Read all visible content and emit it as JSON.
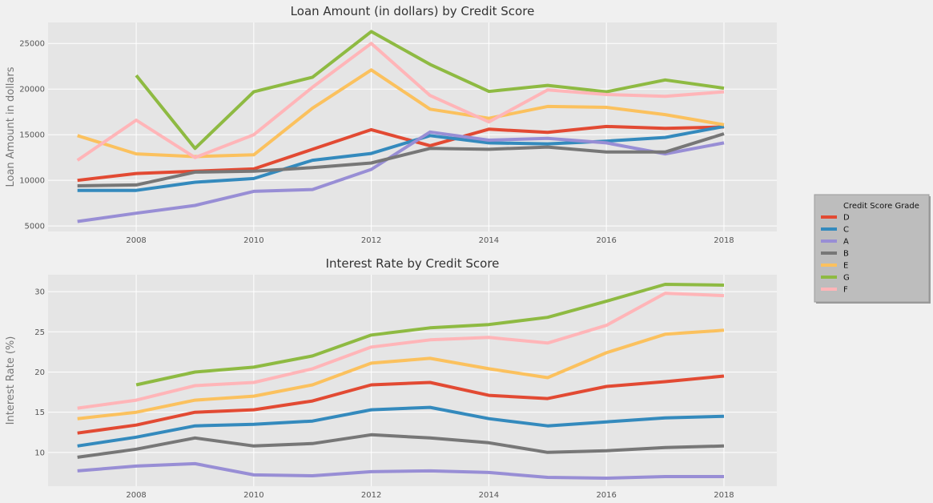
{
  "chart_data": [
    {
      "type": "line",
      "title": "Loan Amount (in dollars) by Credit Score",
      "xlabel": "",
      "ylabel": "Loan Amount in dollars",
      "xlim": [
        2006.5,
        2018.9
      ],
      "ylim": [
        4400,
        27300
      ],
      "xticks": [
        "2008",
        "2010",
        "2012",
        "2014",
        "2016",
        "2018"
      ],
      "yticks": [
        "5000",
        "10000",
        "15000",
        "20000",
        "25000"
      ],
      "grid": true,
      "series": [
        {
          "name": "D",
          "color": "#E24A33",
          "x": [
            2007,
            2008,
            2009,
            2010,
            2011,
            2012,
            2013,
            2014,
            2015,
            2016,
            2017,
            2018
          ],
          "values": [
            10000,
            10750,
            11000,
            11250,
            13400,
            15550,
            13800,
            15600,
            15250,
            15900,
            15700,
            15850
          ]
        },
        {
          "name": "C",
          "color": "#348ABD",
          "x": [
            2007,
            2008,
            2009,
            2010,
            2011,
            2012,
            2013,
            2014,
            2015,
            2016,
            2017,
            2018
          ],
          "values": [
            8900,
            8900,
            9800,
            10200,
            12200,
            12950,
            14900,
            14100,
            14000,
            14300,
            14700,
            15900
          ]
        },
        {
          "name": "A",
          "color": "#988ED5",
          "x": [
            2007,
            2008,
            2009,
            2010,
            2011,
            2012,
            2013,
            2014,
            2015,
            2016,
            2017,
            2018
          ],
          "values": [
            5500,
            6400,
            7250,
            8800,
            9000,
            11200,
            15300,
            14400,
            14600,
            14100,
            12900,
            14100
          ]
        },
        {
          "name": "B",
          "color": "#777777",
          "x": [
            2007,
            2008,
            2009,
            2010,
            2011,
            2012,
            2013,
            2014,
            2015,
            2016,
            2017,
            2018
          ],
          "values": [
            9400,
            9500,
            10900,
            11000,
            11400,
            11900,
            13500,
            13400,
            13650,
            13100,
            13100,
            15100
          ]
        },
        {
          "name": "E",
          "color": "#FBC15E",
          "x": [
            2007,
            2008,
            2009,
            2010,
            2011,
            2012,
            2013,
            2014,
            2015,
            2016,
            2017,
            2018
          ],
          "values": [
            14900,
            12900,
            12600,
            12800,
            17900,
            22100,
            17800,
            16800,
            18100,
            18000,
            17200,
            16100
          ]
        },
        {
          "name": "G",
          "color": "#8EBA42",
          "x": [
            2008,
            2009,
            2010,
            2011,
            2012,
            2013,
            2014,
            2015,
            2016,
            2017,
            2018
          ],
          "values": [
            21500,
            13500,
            19700,
            21300,
            26300,
            22700,
            19750,
            20400,
            19700,
            21000,
            20100
          ]
        },
        {
          "name": "F",
          "color": "#FFB5B8",
          "x": [
            2007,
            2008,
            2009,
            2010,
            2011,
            2012,
            2013,
            2014,
            2015,
            2016,
            2017,
            2018
          ],
          "values": [
            12200,
            16600,
            12500,
            15000,
            20200,
            25000,
            19300,
            16400,
            19900,
            19400,
            19200,
            19700
          ]
        }
      ]
    },
    {
      "type": "line",
      "title": "Interest Rate by Credit Score",
      "xlabel": "",
      "ylabel": "Interest Rate (%)",
      "xlim": [
        2006.5,
        2018.9
      ],
      "ylim": [
        5.8,
        32.1
      ],
      "xticks": [
        "2008",
        "2010",
        "2012",
        "2014",
        "2016",
        "2018"
      ],
      "yticks": [
        "10",
        "15",
        "20",
        "25",
        "30"
      ],
      "grid": true,
      "series": [
        {
          "name": "D",
          "color": "#E24A33",
          "x": [
            2007,
            2008,
            2009,
            2010,
            2011,
            2012,
            2013,
            2014,
            2015,
            2016,
            2017,
            2018
          ],
          "values": [
            12.4,
            13.4,
            15.0,
            15.3,
            16.4,
            18.4,
            18.7,
            17.1,
            16.7,
            18.2,
            18.8,
            19.5
          ]
        },
        {
          "name": "C",
          "color": "#348ABD",
          "x": [
            2007,
            2008,
            2009,
            2010,
            2011,
            2012,
            2013,
            2014,
            2015,
            2016,
            2017,
            2018
          ],
          "values": [
            10.8,
            11.9,
            13.3,
            13.5,
            13.9,
            15.3,
            15.6,
            14.2,
            13.3,
            13.8,
            14.3,
            14.5
          ]
        },
        {
          "name": "A",
          "color": "#988ED5",
          "x": [
            2007,
            2008,
            2009,
            2010,
            2011,
            2012,
            2013,
            2014,
            2015,
            2016,
            2017,
            2018
          ],
          "values": [
            7.7,
            8.3,
            8.6,
            7.2,
            7.1,
            7.6,
            7.7,
            7.5,
            6.9,
            6.8,
            7.0,
            7.0
          ]
        },
        {
          "name": "B",
          "color": "#777777",
          "x": [
            2007,
            2008,
            2009,
            2010,
            2011,
            2012,
            2013,
            2014,
            2015,
            2016,
            2017,
            2018
          ],
          "values": [
            9.4,
            10.4,
            11.8,
            10.8,
            11.1,
            12.2,
            11.8,
            11.2,
            10.0,
            10.2,
            10.6,
            10.8
          ]
        },
        {
          "name": "E",
          "color": "#FBC15E",
          "x": [
            2007,
            2008,
            2009,
            2010,
            2011,
            2012,
            2013,
            2014,
            2015,
            2016,
            2017,
            2018
          ],
          "values": [
            14.2,
            15.0,
            16.5,
            17.0,
            18.4,
            21.1,
            21.7,
            20.4,
            19.3,
            22.4,
            24.7,
            25.2
          ]
        },
        {
          "name": "G",
          "color": "#8EBA42",
          "x": [
            2008,
            2009,
            2010,
            2011,
            2012,
            2013,
            2014,
            2015,
            2016,
            2017,
            2018
          ],
          "values": [
            18.4,
            20.0,
            20.6,
            22.0,
            24.6,
            25.5,
            25.9,
            26.8,
            28.8,
            30.9,
            30.8
          ]
        },
        {
          "name": "F",
          "color": "#FFB5B8",
          "x": [
            2007,
            2008,
            2009,
            2010,
            2011,
            2012,
            2013,
            2014,
            2015,
            2016,
            2017,
            2018
          ],
          "values": [
            15.5,
            16.5,
            18.3,
            18.7,
            20.4,
            23.1,
            24.0,
            24.3,
            23.6,
            25.8,
            29.8,
            29.5
          ]
        }
      ]
    }
  ],
  "legend": {
    "title": "Credit Score Grade",
    "location": "right",
    "entries": [
      {
        "label": "D",
        "color": "#E24A33"
      },
      {
        "label": "C",
        "color": "#348ABD"
      },
      {
        "label": "A",
        "color": "#988ED5"
      },
      {
        "label": "B",
        "color": "#777777"
      },
      {
        "label": "E",
        "color": "#FBC15E"
      },
      {
        "label": "G",
        "color": "#8EBA42"
      },
      {
        "label": "F",
        "color": "#FFB5B8"
      }
    ]
  }
}
